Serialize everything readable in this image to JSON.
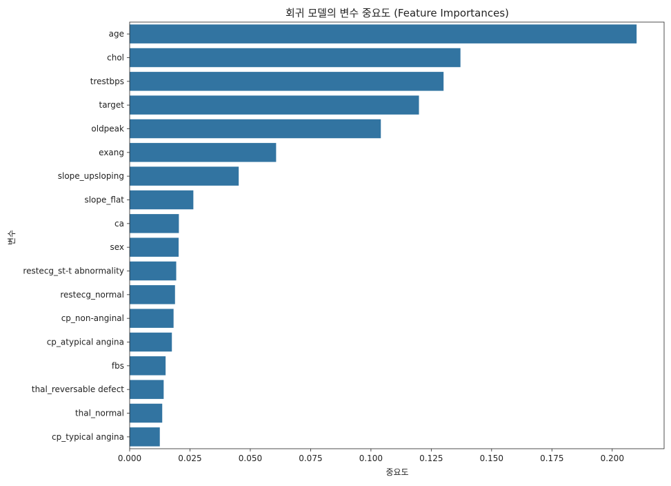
{
  "chart_data": {
    "type": "bar",
    "orientation": "horizontal",
    "title": "회귀 모델의 변수 중요도 (Feature Importances)",
    "xlabel": "중요도",
    "ylabel": "변수",
    "xlim": [
      0,
      0.2215
    ],
    "xticks": [
      0.0,
      0.025,
      0.05,
      0.075,
      0.1,
      0.125,
      0.15,
      0.175,
      0.2
    ],
    "xtick_labels": [
      "0.000",
      "0.025",
      "0.050",
      "0.075",
      "0.100",
      "0.125",
      "0.150",
      "0.175",
      "0.200"
    ],
    "grid": false,
    "bar_color": "#3274a1",
    "categories": [
      "age",
      "chol",
      "trestbps",
      "target",
      "oldpeak",
      "exang",
      "slope_upsloping",
      "slope_flat",
      "ca",
      "sex",
      "restecg_st-t abnormality",
      "restecg_normal",
      "cp_non-anginal",
      "cp_atypical angina",
      "fbs",
      "thal_reversable defect",
      "thal_normal",
      "cp_typical angina"
    ],
    "values": [
      0.2101,
      0.1371,
      0.1301,
      0.1199,
      0.1041,
      0.0607,
      0.0452,
      0.0264,
      0.0204,
      0.0203,
      0.0193,
      0.0188,
      0.0182,
      0.0175,
      0.0149,
      0.0141,
      0.0135,
      0.0125
    ]
  }
}
